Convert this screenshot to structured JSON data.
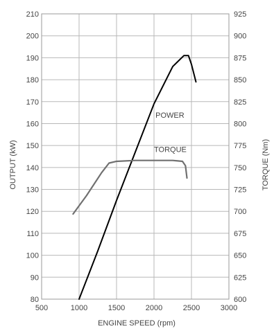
{
  "chart_data": {
    "type": "line",
    "xlabel": "ENGINE SPEED (rpm)",
    "ylabel_left": "OUTPUT (kW)",
    "ylabel_right": "TORQUE (Nm)",
    "xlim": [
      500,
      3000
    ],
    "ylim_left": [
      80,
      210
    ],
    "ylim_right": [
      600,
      925
    ],
    "x_ticks": [
      500,
      1000,
      1500,
      2000,
      2500,
      3000
    ],
    "y_ticks_left": [
      80,
      90,
      100,
      110,
      120,
      130,
      140,
      150,
      160,
      170,
      180,
      190,
      200,
      210
    ],
    "y_ticks_right": [
      600,
      625,
      650,
      675,
      700,
      725,
      750,
      775,
      800,
      825,
      850,
      875,
      900,
      925
    ],
    "grid": true,
    "legend": "none",
    "series": [
      {
        "name": "POWER",
        "axis": "left",
        "color": "#000000",
        "x": [
          1000,
          1250,
          1500,
          1750,
          2000,
          2250,
          2400,
          2460,
          2500,
          2560
        ],
        "y": [
          80,
          102,
          125,
          147,
          169,
          186,
          191,
          191,
          187,
          179
        ]
      },
      {
        "name": "TORQUE",
        "axis": "right",
        "color": "#707070",
        "x": [
          920,
          1100,
          1300,
          1400,
          1500,
          1750,
          2000,
          2250,
          2380,
          2420,
          2440
        ],
        "y": [
          697,
          718,
          744,
          755,
          757,
          758,
          758,
          758,
          757,
          752,
          738
        ]
      }
    ]
  }
}
